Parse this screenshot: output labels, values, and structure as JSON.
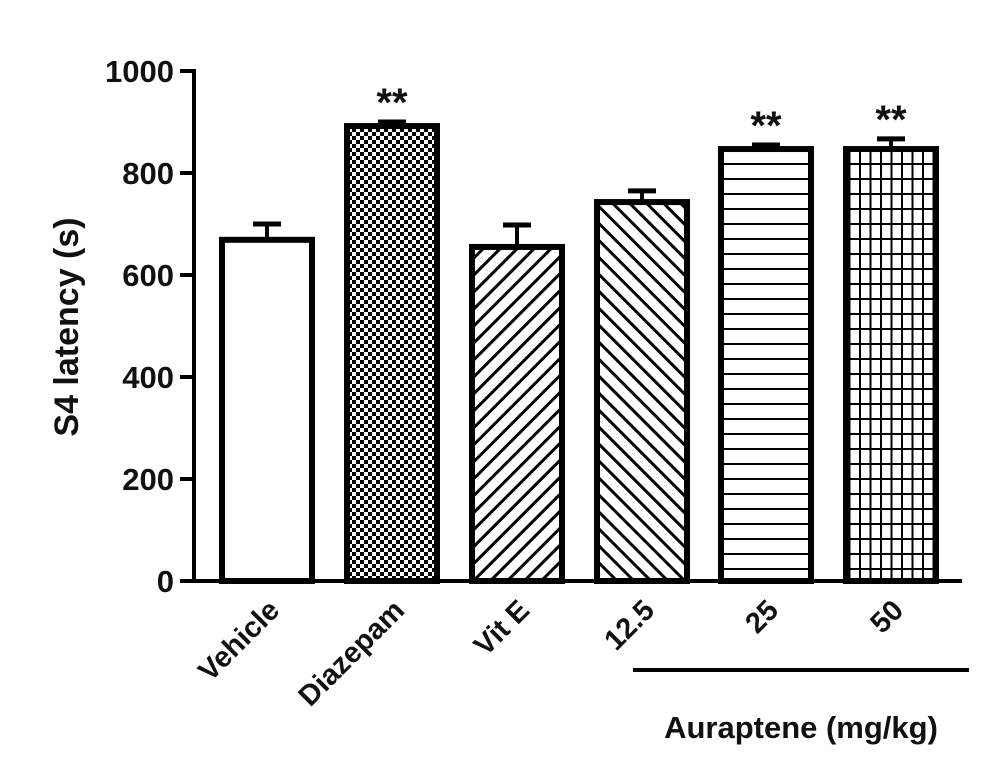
{
  "chart_data": {
    "type": "bar",
    "title": "",
    "xlabel": "",
    "ylabel": "S4 latency (s)",
    "ylim": [
      0,
      1000
    ],
    "yticks": [
      0,
      200,
      400,
      600,
      800,
      1000
    ],
    "categories": [
      "Vehicle",
      "Diazepam",
      "Vit E",
      "12.5",
      "25",
      "50"
    ],
    "values": [
      669,
      892,
      655,
      743,
      847,
      847
    ],
    "errors": [
      31,
      8,
      43,
      22,
      8,
      20
    ],
    "patterns": [
      "none",
      "checker",
      "diag-right",
      "diag-left",
      "horizontal",
      "grid"
    ],
    "significance": [
      "",
      "**",
      "",
      "",
      "**",
      "**"
    ],
    "group_label": "Auraptene (mg/kg)",
    "group_categories": [
      "12.5",
      "25",
      "50"
    ],
    "grid": false,
    "color": "#000000"
  }
}
